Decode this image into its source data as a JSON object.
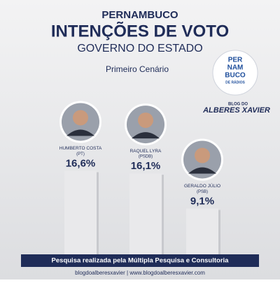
{
  "chart_data": {
    "type": "bar",
    "title": "PERNAMBUCO",
    "subtitle": "INTENÇÕES DE VOTO",
    "subtitle2": "GOVERNO DO ESTADO",
    "scenario": "Primeiro Cenário",
    "categories": [
      "HUMBERTO COSTA",
      "RAQUEL LYRA",
      "GERALDO JÚLIO"
    ],
    "parties": [
      "(PT)",
      "(PSDB)",
      "(PSB)"
    ],
    "values": [
      16.6,
      16.1,
      9.1
    ],
    "value_labels": [
      "16,6%",
      "16,1%",
      "9,1%"
    ],
    "color": "#e9e9eb",
    "logo": {
      "line1": "PER",
      "line2": "NAM",
      "line3": "BUCO",
      "line4": "DE RÁDIOS"
    },
    "blog": {
      "small": "BLOG DO",
      "name": "ALBERES XAVIER"
    },
    "source": "Pesquisa realizada pela Múltipla Pesquisa e Consultoria",
    "footer": "blogdoalberesxavier | www.blogdoalberesxavier.com"
  }
}
